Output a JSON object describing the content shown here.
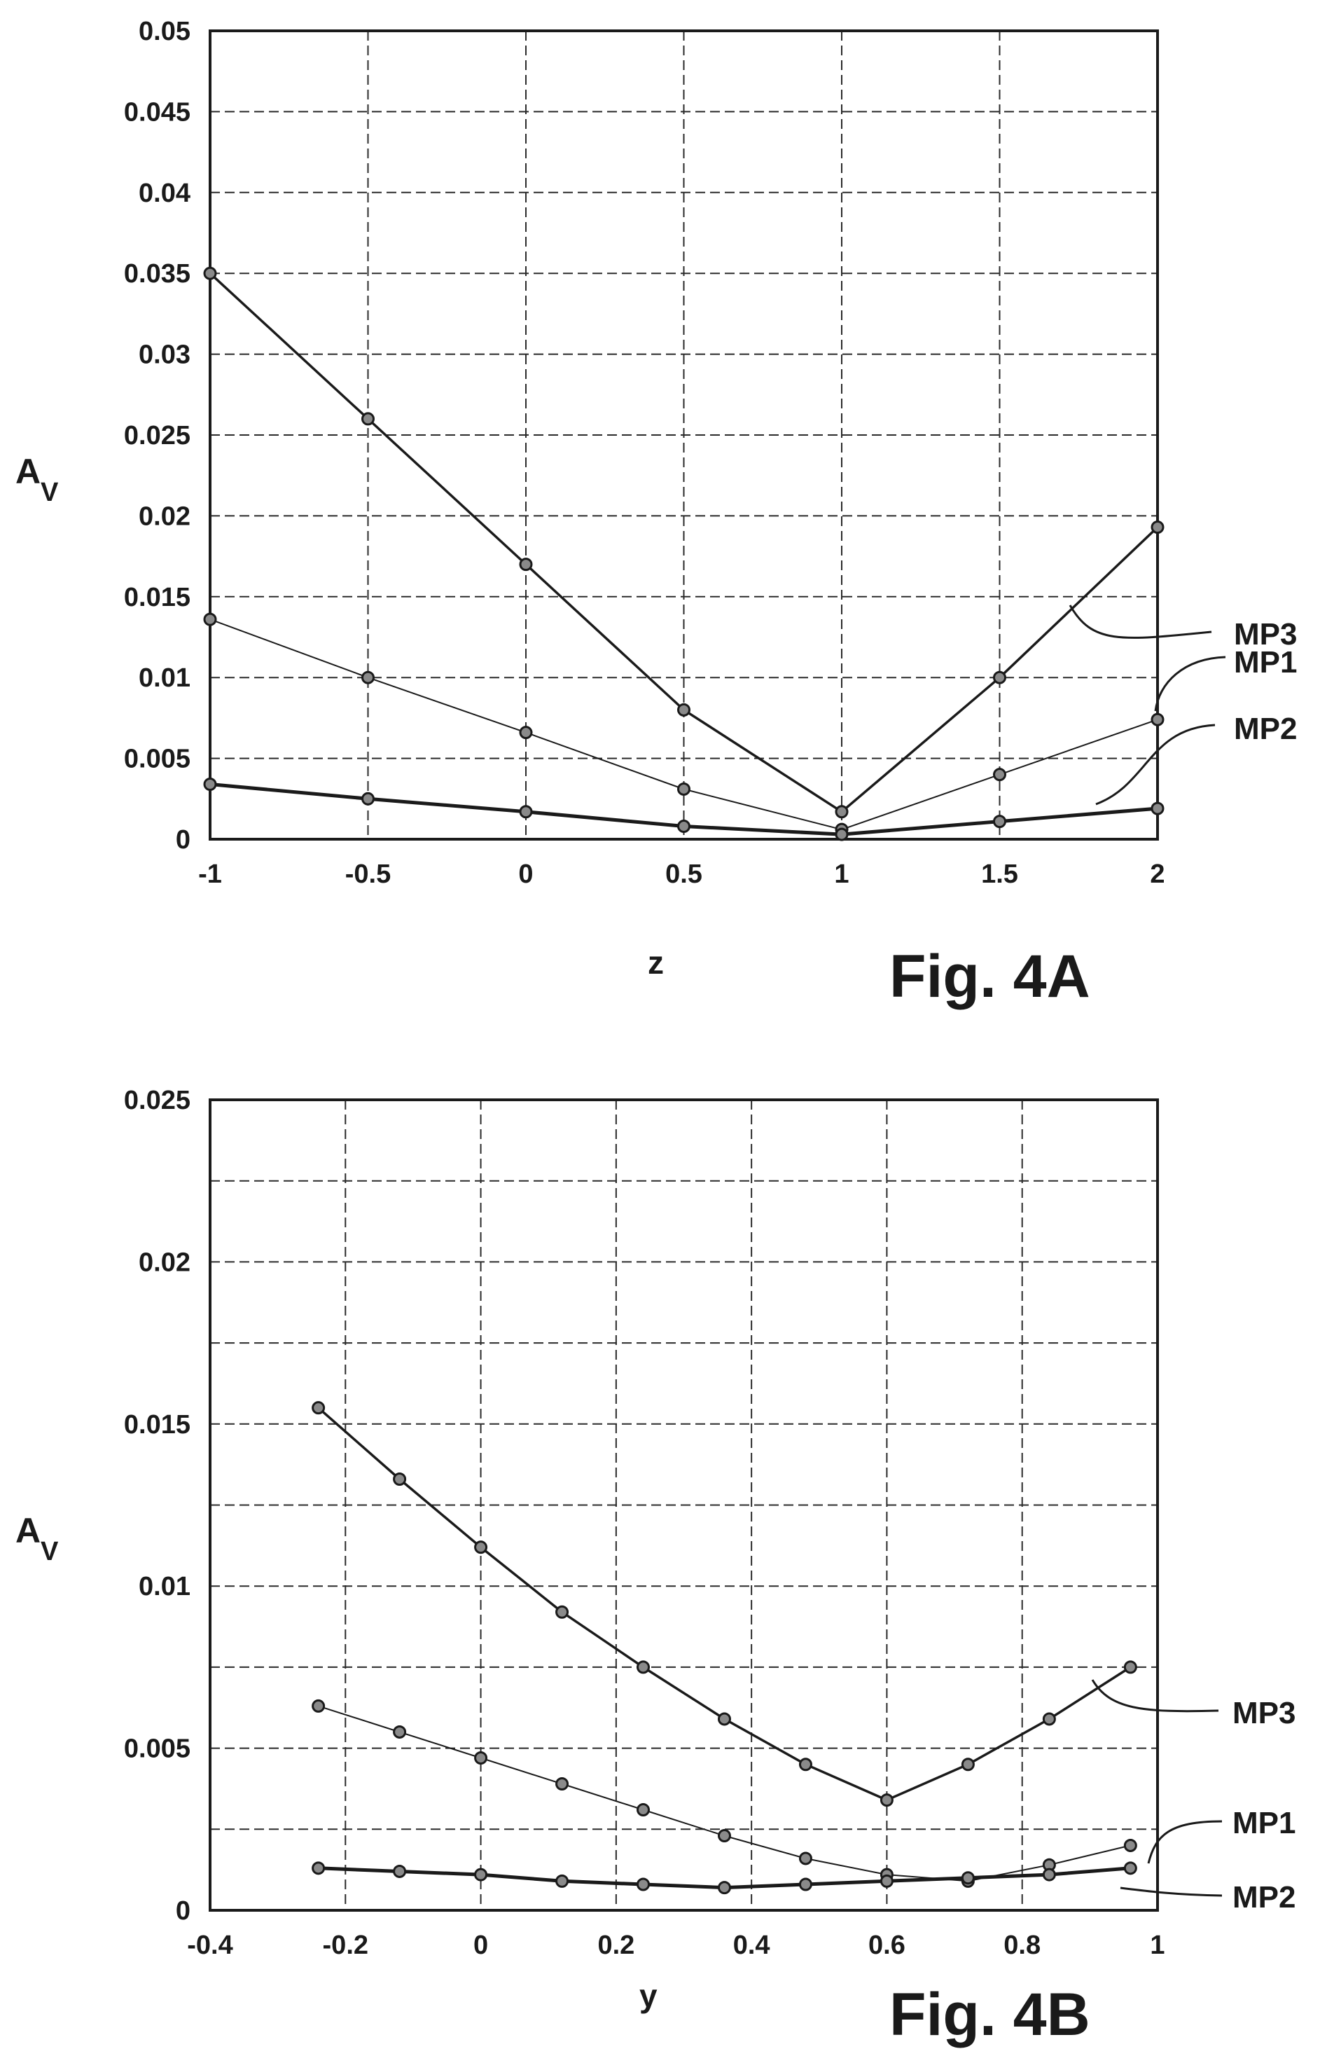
{
  "chart_data": [
    {
      "type": "line",
      "caption": "Fig. 4A",
      "xlabel": "z",
      "ylabel": "A",
      "ylabel_sub": "V",
      "xlim": [
        -1,
        2
      ],
      "ylim": [
        0,
        0.05
      ],
      "x_ticks": [
        "-1",
        "-0.5",
        "0",
        "0.5",
        "1",
        "1.5",
        "2"
      ],
      "x_tick_values": [
        -1,
        -0.5,
        0,
        0.5,
        1,
        1.5,
        2
      ],
      "y_ticks": [
        "0",
        "0.005",
        "0.01",
        "0.015",
        "0.02",
        "0.025",
        "0.03",
        "0.035",
        "0.04",
        "0.045",
        "0.05"
      ],
      "y_tick_values": [
        0,
        0.005,
        0.01,
        0.015,
        0.02,
        0.025,
        0.03,
        0.035,
        0.04,
        0.045,
        0.05
      ],
      "grid": true,
      "series": [
        {
          "name": "MP3",
          "x": [
            -1,
            -0.5,
            0,
            0.5,
            1,
            1.5,
            2
          ],
          "values": [
            0.035,
            0.026,
            0.017,
            0.008,
            0.0017,
            0.01,
            0.0193
          ]
        },
        {
          "name": "MP1",
          "x": [
            -1,
            -0.5,
            0,
            0.5,
            1,
            1.5,
            2
          ],
          "values": [
            0.0136,
            0.01,
            0.0066,
            0.0031,
            0.0006,
            0.004,
            0.0074
          ]
        },
        {
          "name": "MP2",
          "x": [
            -1,
            -0.5,
            0,
            0.5,
            1,
            1.5,
            2
          ],
          "values": [
            0.0034,
            0.0025,
            0.0017,
            0.0008,
            0.0003,
            0.0011,
            0.0019
          ]
        }
      ]
    },
    {
      "type": "line",
      "caption": "Fig. 4B",
      "xlabel": "y",
      "ylabel": "A",
      "ylabel_sub": "V",
      "xlim": [
        -0.4,
        1
      ],
      "ylim": [
        0,
        0.025
      ],
      "x_ticks": [
        "-0.4",
        "-0.2",
        "0",
        "0.2",
        "0.4",
        "0.6",
        "0.8",
        "1"
      ],
      "x_tick_values": [
        -0.4,
        -0.2,
        0,
        0.2,
        0.4,
        0.6,
        0.8,
        1
      ],
      "y_ticks": [
        "0",
        "0.005",
        "0.01",
        "0.015",
        "0.02",
        "0.025"
      ],
      "y_tick_values": [
        0,
        0.005,
        0.01,
        0.015,
        0.02,
        0.025
      ],
      "grid": true,
      "series": [
        {
          "name": "MP3",
          "x": [
            -0.24,
            -0.12,
            0,
            0.12,
            0.24,
            0.36,
            0.48,
            0.6,
            0.72,
            0.84,
            0.96
          ],
          "values": [
            0.0155,
            0.0133,
            0.0112,
            0.0092,
            0.0075,
            0.0059,
            0.0045,
            0.0034,
            0.0045,
            0.0059,
            0.0075
          ]
        },
        {
          "name": "MP1",
          "x": [
            -0.24,
            -0.12,
            0,
            0.12,
            0.24,
            0.36,
            0.48,
            0.6,
            0.72,
            0.84,
            0.96
          ],
          "values": [
            0.0063,
            0.0055,
            0.0047,
            0.0039,
            0.0031,
            0.0023,
            0.0016,
            0.0011,
            0.0009,
            0.0014,
            0.002
          ]
        },
        {
          "name": "MP2",
          "x": [
            -0.24,
            -0.12,
            0,
            0.12,
            0.24,
            0.36,
            0.48,
            0.6,
            0.72,
            0.84,
            0.96
          ],
          "values": [
            0.0013,
            0.0012,
            0.0011,
            0.0009,
            0.0008,
            0.0007,
            0.0008,
            0.0009,
            0.001,
            0.0011,
            0.0013
          ]
        }
      ]
    }
  ],
  "colors": {
    "ink": "#1a1a1a",
    "marker_fill": "#8a8a8a",
    "background": "#ffffff"
  }
}
